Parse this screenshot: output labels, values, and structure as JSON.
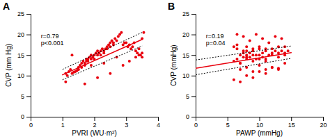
{
  "chart_data": [
    {
      "type": "scatter",
      "title": "A",
      "xlabel": "PVRI (WU·m²)",
      "ylabel": "CVP (mm Hg)",
      "annotations": [
        "r=0.79",
        "p<0.001"
      ],
      "xlim": [
        0,
        4
      ],
      "ylim": [
        0,
        25
      ],
      "xticks": [
        0,
        1,
        2,
        3,
        4
      ],
      "yticks": [
        0,
        5,
        10,
        15,
        20,
        25
      ],
      "grid": false,
      "series": [
        {
          "type": "scatter",
          "color": "#e8000d",
          "marker": "circle",
          "x": [
            1.1,
            1.15,
            1.2,
            1.25,
            1.3,
            1.35,
            1.4,
            1.45,
            1.5,
            1.5,
            1.55,
            1.6,
            1.6,
            1.65,
            1.7,
            1.7,
            1.75,
            1.75,
            1.8,
            1.8,
            1.85,
            1.9,
            1.9,
            1.95,
            2.0,
            2.0,
            2.05,
            2.1,
            2.1,
            2.15,
            2.2,
            2.2,
            2.25,
            2.3,
            2.3,
            2.35,
            2.4,
            2.4,
            2.45,
            2.5,
            2.5,
            2.55,
            2.6,
            2.6,
            2.65,
            2.7,
            2.75,
            2.8,
            2.85,
            2.9,
            2.95,
            3.0,
            3.05,
            3.1,
            3.15,
            3.2,
            3.25,
            3.3,
            3.35,
            3.4,
            3.4,
            3.45,
            3.5,
            3.5,
            3.5,
            3.55,
            1.1,
            1.3,
            1.5,
            1.7,
            1.9,
            2.1,
            2.3,
            2.5,
            2.7,
            2.9,
            3.1,
            3.3
          ],
          "values": [
            10.5,
            10.0,
            11.0,
            11.5,
            10.5,
            10.8,
            11.0,
            11.2,
            12.0,
            11.5,
            12.5,
            12.0,
            13.0,
            13.5,
            12.5,
            13.0,
            14.0,
            13.5,
            14.0,
            13.5,
            14.5,
            14.0,
            15.0,
            14.5,
            14.0,
            15.0,
            15.5,
            15.0,
            16.0,
            15.5,
            15.0,
            16.0,
            16.5,
            16.0,
            15.5,
            16.5,
            17.0,
            16.5,
            17.5,
            17.0,
            18.0,
            18.5,
            17.5,
            18.0,
            19.0,
            18.5,
            19.5,
            20.0,
            20.5,
            17.5,
            18.0,
            18.0,
            17.0,
            17.5,
            16.5,
            17.0,
            18.0,
            16.0,
            15.5,
            15.0,
            16.5,
            15.0,
            14.5,
            15.5,
            19.0,
            20.5,
            8.5,
            15.0,
            11.5,
            8.0,
            12.5,
            9.5,
            13.0,
            10.5,
            14.5,
            12.5,
            13.5,
            14.5
          ]
        },
        {
          "type": "line",
          "color": "#e8000d",
          "line_style": "solid",
          "x": [
            1.0,
            3.5
          ],
          "values": [
            10.2,
            18.8
          ]
        },
        {
          "type": "line",
          "color": "#000000",
          "line_style": "dotted",
          "x": [
            1.0,
            3.5
          ],
          "values": [
            11.5,
            20.5
          ]
        },
        {
          "type": "line",
          "color": "#000000",
          "line_style": "dotted",
          "x": [
            1.0,
            3.5
          ],
          "values": [
            9.0,
            17.2
          ]
        }
      ]
    },
    {
      "type": "scatter",
      "title": "B",
      "xlabel": "PAWP (mmHg)",
      "ylabel": "CVP (mmHg)",
      "annotations": [
        "r=0.19",
        "p=0.04"
      ],
      "xlim": [
        0,
        20
      ],
      "ylim": [
        0,
        25
      ],
      "xticks": [
        0,
        5,
        10,
        15,
        20
      ],
      "yticks": [
        0,
        5,
        10,
        15,
        20,
        25
      ],
      "grid": false,
      "series": [
        {
          "type": "scatter",
          "color": "#e8000d",
          "marker": "circle",
          "x": [
            6.0,
            6.5,
            7.0,
            7.0,
            7.5,
            7.5,
            8.0,
            8.0,
            8.0,
            8.5,
            8.5,
            9.0,
            9.0,
            9.5,
            9.5,
            10.0,
            10.0,
            10.5,
            10.5,
            11.0,
            11.0,
            11.5,
            12.0,
            12.5,
            13.0,
            13.5,
            14.0,
            14.5,
            6.0,
            7.0,
            8.0,
            9.0,
            10.0,
            11.0,
            12.0,
            13.0,
            14.0,
            6.5,
            7.5,
            8.5,
            9.5,
            10.5,
            11.5,
            12.5,
            13.5,
            7.0,
            8.0,
            9.0,
            10.0,
            11.0,
            12.0,
            13.0,
            14.0,
            6.0,
            6.5,
            7.5,
            8.0,
            9.0,
            10.0,
            11.0,
            12.0,
            13.0,
            14.0,
            6.5,
            7.0,
            8.0,
            9.0,
            10.0,
            11.0,
            12.0,
            13.0
          ],
          "values": [
            13.5,
            14.0,
            13.0,
            15.0,
            14.5,
            15.5,
            14.0,
            15.0,
            16.0,
            14.5,
            15.5,
            15.0,
            16.0,
            14.0,
            15.0,
            15.0,
            16.5,
            14.5,
            15.5,
            14.0,
            16.0,
            15.0,
            15.5,
            16.0,
            15.5,
            16.0,
            15.5,
            16.0,
            9.0,
            8.5,
            10.0,
            9.5,
            11.0,
            10.5,
            12.0,
            11.5,
            13.0,
            20.0,
            19.5,
            18.5,
            20.0,
            19.0,
            18.0,
            19.5,
            19.0,
            13.0,
            14.5,
            13.5,
            14.0,
            13.5,
            15.0,
            14.5,
            15.0,
            17.0,
            16.5,
            16.0,
            17.0,
            16.5,
            17.0,
            16.5,
            16.5,
            17.0,
            17.0,
            17.5,
            11.5,
            12.0,
            11.0,
            12.5,
            11.5,
            12.0,
            11.8
          ]
        },
        {
          "type": "line",
          "color": "#e8000d",
          "line_style": "solid",
          "x": [
            0,
            15
          ],
          "values": [
            11.8,
            15.6
          ]
        },
        {
          "type": "line",
          "color": "#000000",
          "line_style": "dotted",
          "x": [
            0,
            15
          ],
          "values": [
            13.8,
            17.2
          ]
        },
        {
          "type": "line",
          "color": "#000000",
          "line_style": "dotted",
          "x": [
            0,
            15
          ],
          "values": [
            10.2,
            14.2
          ]
        }
      ]
    }
  ]
}
